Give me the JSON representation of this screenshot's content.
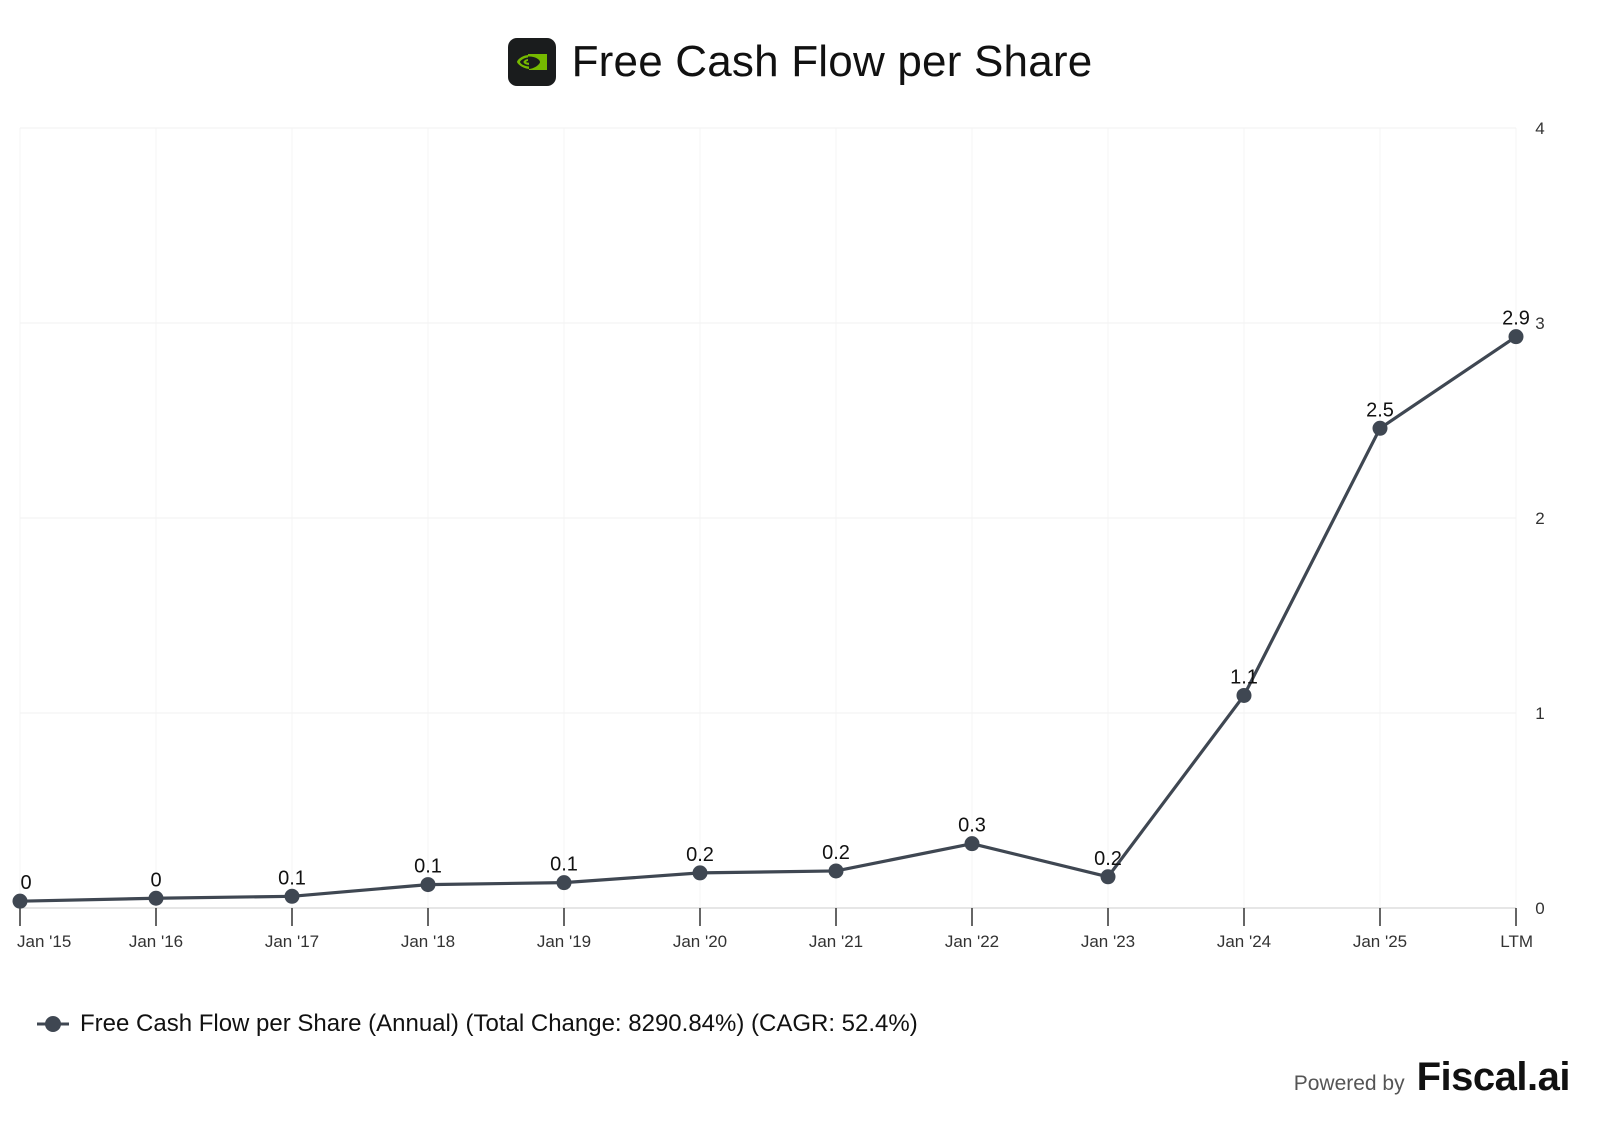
{
  "header": {
    "title": "Free Cash Flow per Share",
    "logo_icon": "nvidia-logo-icon",
    "logo_color": "#76b900"
  },
  "chart_data": {
    "type": "line",
    "title": "Free Cash Flow per Share",
    "categories": [
      "Jan '15",
      "Jan '16",
      "Jan '17",
      "Jan '18",
      "Jan '19",
      "Jan '20",
      "Jan '21",
      "Jan '22",
      "Jan '23",
      "Jan '24",
      "Jan '25",
      "LTM"
    ],
    "series": [
      {
        "name": "Free Cash Flow per Share (Annual) (Total Change: 8290.84%) (CAGR: 52.4%)",
        "values": [
          0.035,
          0.05,
          0.06,
          0.12,
          0.13,
          0.18,
          0.19,
          0.33,
          0.16,
          1.09,
          2.46,
          2.93
        ],
        "data_labels": [
          "0",
          "0",
          "0.1",
          "0.1",
          "0.1",
          "0.2",
          "0.2",
          "0.3",
          "0.2",
          "1.1",
          "2.5",
          "2.9"
        ],
        "color": "#3f4752"
      }
    ],
    "ylim": [
      0,
      4
    ],
    "y_ticks": [
      "0",
      "1",
      "2",
      "3",
      "4"
    ],
    "y_axis_side": "right",
    "grid": true,
    "legend_position": "bottom-left",
    "xlabel": "",
    "ylabel": ""
  },
  "legend": {
    "label": "Free Cash Flow per Share (Annual) (Total Change: 8290.84%) (CAGR: 52.4%)"
  },
  "footer": {
    "powered_by": "Powered by",
    "brand": "Fiscal.ai"
  }
}
